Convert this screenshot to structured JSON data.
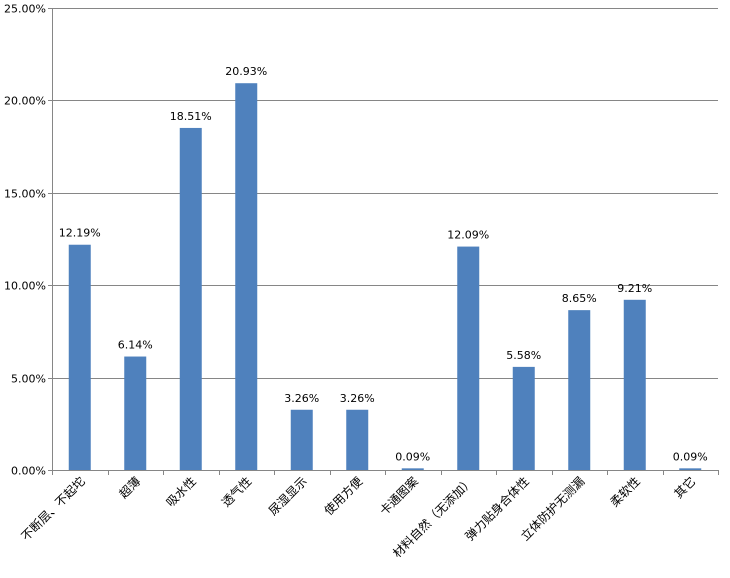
{
  "chart_data": {
    "type": "bar",
    "title": "",
    "xlabel": "",
    "ylabel": "",
    "categories": [
      "不断层、不起坨",
      "超薄",
      "吸水性",
      "透气性",
      "尿湿显示",
      "使用方便",
      "卡通图案",
      "材料自然（无添加）",
      "弹力贴身合体性",
      "立体防护无测漏",
      "柔软性",
      "其它"
    ],
    "values": [
      12.19,
      6.14,
      18.51,
      20.93,
      3.26,
      3.26,
      0.09,
      12.09,
      5.58,
      8.65,
      9.21,
      0.09
    ],
    "data_labels": [
      "12.19%",
      "6.14%",
      "18.51%",
      "20.93%",
      "3.26%",
      "3.26%",
      "0.09%",
      "12.09%",
      "5.58%",
      "8.65%",
      "9.21%",
      "0.09%"
    ],
    "ylim": [
      0,
      25
    ],
    "yticks": [
      0,
      5,
      10,
      15,
      20,
      25
    ],
    "ytick_labels": [
      "0.00%",
      "5.00%",
      "10.00%",
      "15.00%",
      "20.00%",
      "25.00%"
    ],
    "grid": true,
    "legend": "none",
    "bar_color": "#4F81BD"
  }
}
